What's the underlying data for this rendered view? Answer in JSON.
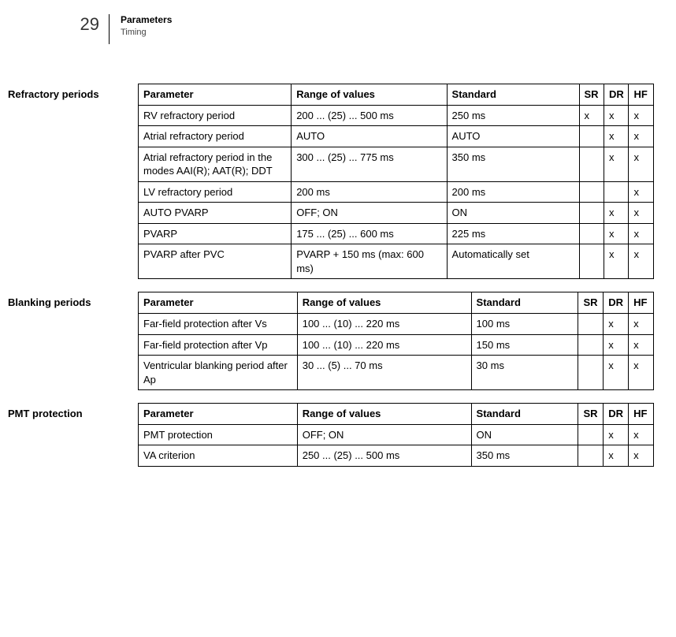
{
  "page_number": "29",
  "header": {
    "title": "Parameters",
    "subtitle": "Timing"
  },
  "columns_main": [
    "Parameter",
    "Range of values",
    "Standard",
    "SR",
    "DR",
    "HF"
  ],
  "sections": [
    {
      "label": "Refractory periods",
      "col_widths": {
        "param": 185,
        "range": 188,
        "std": 160
      },
      "rows": [
        {
          "param": "RV refractory period",
          "range": "200 ... (25) ... 500 ms",
          "std": "250 ms",
          "sr": "x",
          "dr": "x",
          "hf": "x"
        },
        {
          "param": "Atrial refractory period",
          "range": "AUTO",
          "std": "AUTO",
          "sr": "",
          "dr": "x",
          "hf": "x"
        },
        {
          "param": "Atrial refractory period in the modes AAI(R); AAT(R); DDT",
          "range": "300 ... (25) ... 775 ms",
          "std": "350 ms",
          "sr": "",
          "dr": "x",
          "hf": "x"
        },
        {
          "param": "LV refractory period",
          "range": "200 ms",
          "std": "200 ms",
          "sr": "",
          "dr": "",
          "hf": "x"
        },
        {
          "param": "AUTO PVARP",
          "range": "OFF; ON",
          "std": "ON",
          "sr": "",
          "dr": "x",
          "hf": "x"
        },
        {
          "param": "PVARP",
          "range": "175 ... (25) ... 600 ms",
          "std": "225 ms",
          "sr": "",
          "dr": "x",
          "hf": "x"
        },
        {
          "param": "PVARP after PVC",
          "range": "PVARP + 150 ms (max: 600 ms)",
          "std": "Automatically set",
          "sr": "",
          "dr": "x",
          "hf": "x"
        }
      ]
    },
    {
      "label": "Blanking periods",
      "col_widths": {
        "param": 190,
        "range": 208,
        "std": 128
      },
      "rows": [
        {
          "param": "Far-field protection after Vs",
          "range": "100 ... (10) ... 220 ms",
          "std": "100 ms",
          "sr": "",
          "dr": "x",
          "hf": "x"
        },
        {
          "param": "Far-field protection after Vp",
          "range": "100 ... (10) ... 220 ms",
          "std": "150 ms",
          "sr": "",
          "dr": "x",
          "hf": "x"
        },
        {
          "param": "Ventricular blanking period after Ap",
          "range": "30 ... (5) ... 70 ms",
          "std": "30 ms",
          "sr": "",
          "dr": "x",
          "hf": "x"
        }
      ]
    },
    {
      "label": "PMT protection",
      "col_widths": {
        "param": 190,
        "range": 208,
        "std": 128
      },
      "rows": [
        {
          "param": "PMT protection",
          "range": "OFF; ON",
          "std": "ON",
          "sr": "",
          "dr": "x",
          "hf": "x"
        },
        {
          "param": "VA criterion",
          "range": "250 ... (25) ... 500 ms",
          "std": "350 ms",
          "sr": "",
          "dr": "x",
          "hf": "x"
        }
      ]
    }
  ]
}
